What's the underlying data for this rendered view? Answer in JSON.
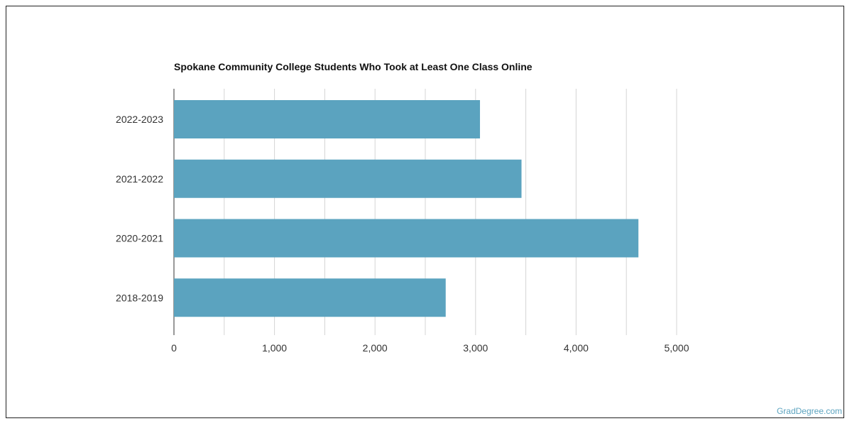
{
  "chart_data": {
    "type": "bar",
    "orientation": "horizontal",
    "title": "Spokane Community College Students Who Took at Least One Class Online",
    "categories": [
      "2022-2023",
      "2021-2022",
      "2020-2021",
      "2018-2019"
    ],
    "values": [
      3044,
      3457,
      4620,
      2703
    ],
    "xlim": [
      0,
      5000
    ],
    "x_ticks": [
      0,
      1000,
      2000,
      3000,
      4000,
      5000
    ],
    "x_tick_labels": [
      "0",
      "1,000",
      "2,000",
      "3,000",
      "4,000",
      "5,000"
    ],
    "xlabel": "",
    "ylabel": "",
    "grid": true,
    "bar_color": "#5ba3bf"
  },
  "watermark": "GradDegree.com"
}
